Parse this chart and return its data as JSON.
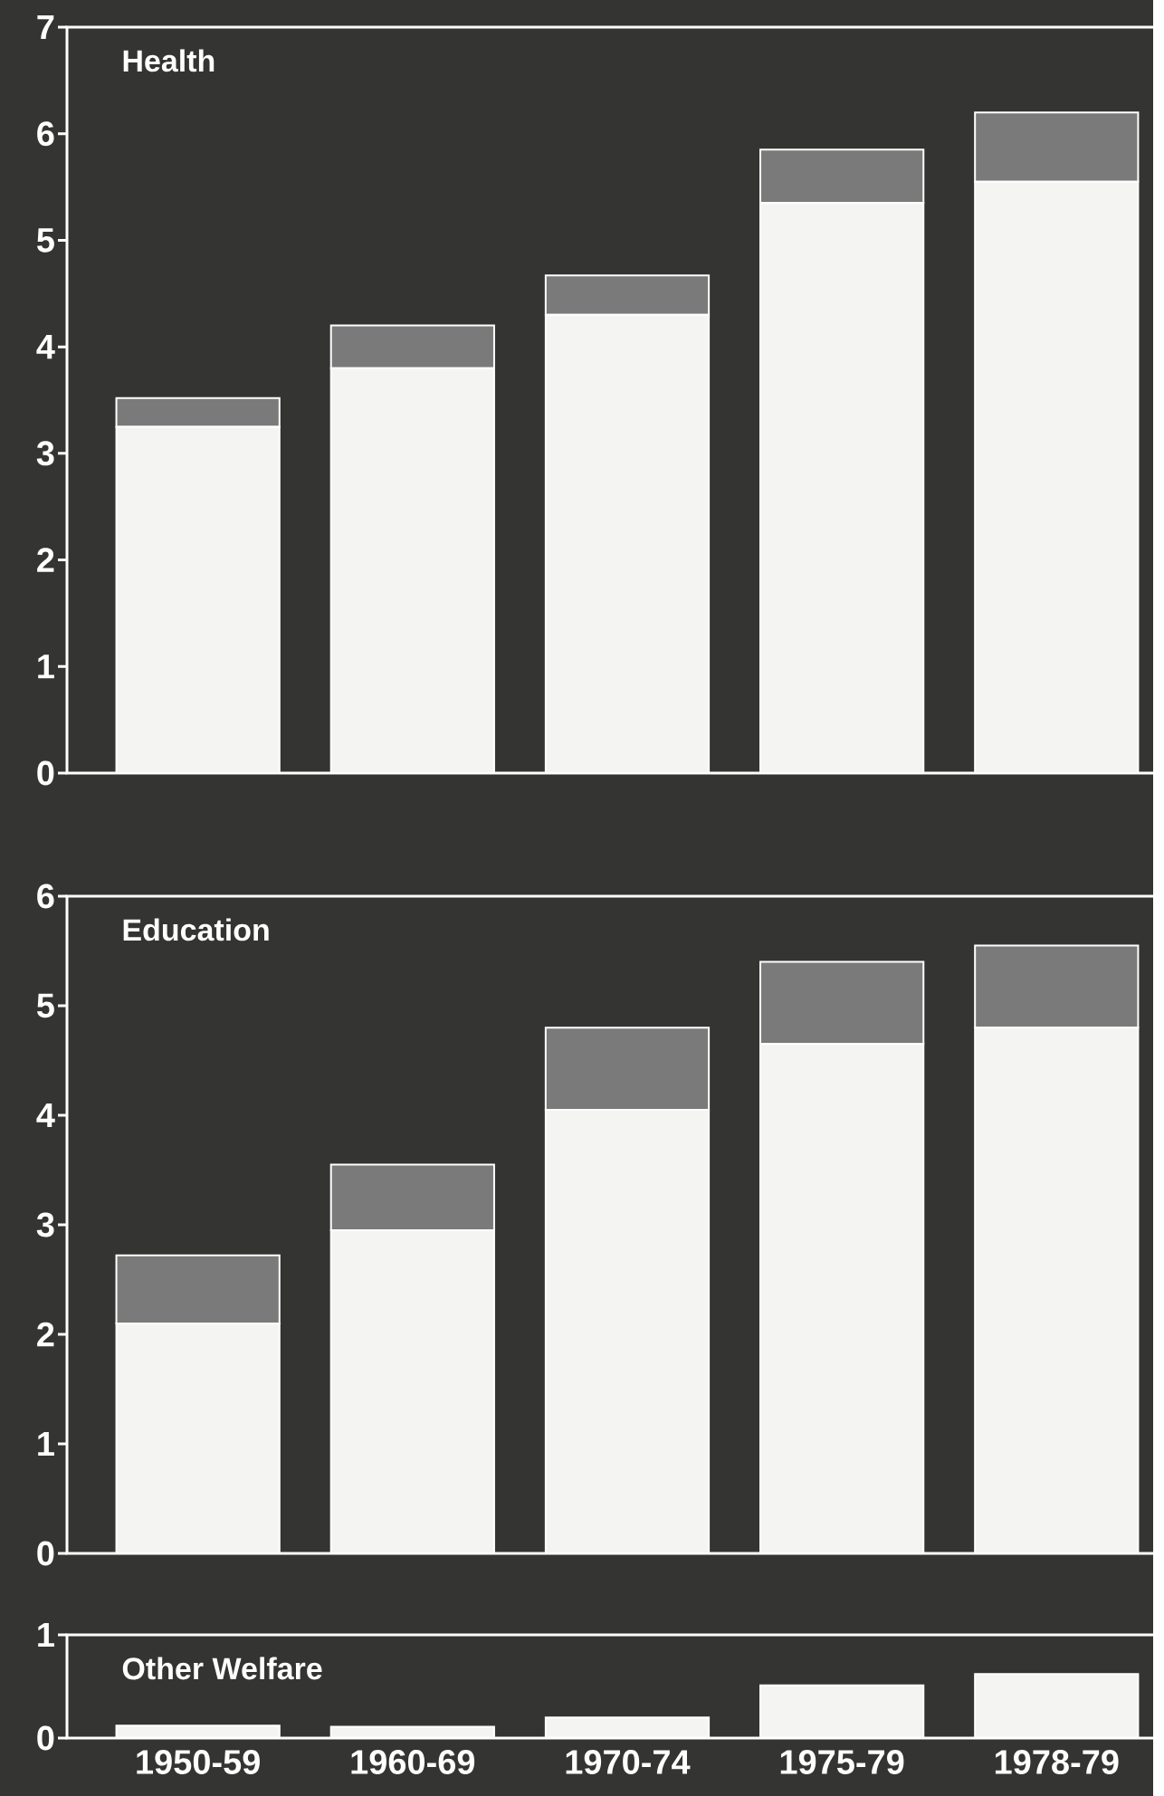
{
  "chart_data": [
    {
      "type": "bar",
      "title": "Health",
      "categories": [
        "1950-59",
        "1960-69",
        "1970-74",
        "1975-79",
        "1978-79"
      ],
      "stacked": true,
      "tick_labels": "y",
      "ylim": [
        0,
        7
      ],
      "yticks": [
        0,
        1,
        2,
        3,
        4,
        5,
        6,
        7
      ],
      "series": [
        {
          "color": "#f4f4f2",
          "values": [
            3.25,
            3.8,
            4.3,
            5.35,
            5.55
          ]
        },
        {
          "color": "#7a7a7a",
          "values": [
            0.27,
            0.4,
            0.37,
            0.5,
            0.65
          ]
        }
      ]
    },
    {
      "type": "bar",
      "title": "Education",
      "categories": [
        "1950-59",
        "1960-69",
        "1970-74",
        "1975-79",
        "1978-79"
      ],
      "stacked": true,
      "tick_labels": "y",
      "ylim": [
        0,
        6
      ],
      "yticks": [
        0,
        1,
        2,
        3,
        4,
        5,
        6
      ],
      "series": [
        {
          "color": "#f4f4f2",
          "values": [
            2.1,
            2.95,
            4.05,
            4.65,
            4.8
          ]
        },
        {
          "color": "#7a7a7a",
          "values": [
            0.62,
            0.6,
            0.75,
            0.75,
            0.75
          ]
        }
      ]
    },
    {
      "type": "bar",
      "title": "Other Welfare",
      "categories": [
        "1950-59",
        "1960-69",
        "1970-74",
        "1975-79",
        "1978-79"
      ],
      "ylim": [
        0,
        1
      ],
      "yticks": [
        0,
        1
      ],
      "series": [
        {
          "color": "#f4f4f2",
          "values": [
            0.12,
            0.11,
            0.2,
            0.51,
            0.62
          ]
        }
      ]
    }
  ]
}
